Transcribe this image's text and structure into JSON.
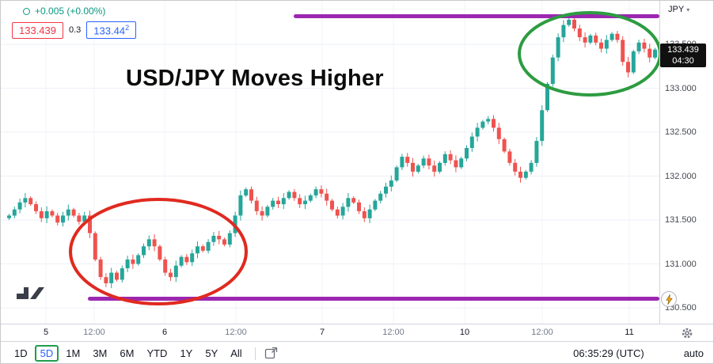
{
  "legend": {
    "change": "+0.005 (+0.00%)",
    "sell": "133.439",
    "spread": "0.3",
    "buy_main": "133.44",
    "buy_sup": "2"
  },
  "annotation": {
    "title": "USD/JPY Moves Higher"
  },
  "price_axis": {
    "symbol_label": "JPY",
    "levels": [
      "133.500",
      "133.000",
      "132.500",
      "132.000",
      "131.500",
      "131.000",
      "130.500"
    ],
    "last_price": "133.439",
    "countdown": "04:30"
  },
  "time_axis": {
    "labels": [
      {
        "text": "5",
        "major": true
      },
      {
        "text": "12:00",
        "major": false
      },
      {
        "text": "6",
        "major": true
      },
      {
        "text": "12:00",
        "major": false
      },
      {
        "text": "7",
        "major": true
      },
      {
        "text": "12:00",
        "major": false
      },
      {
        "text": "10",
        "major": true
      },
      {
        "text": "12:00",
        "major": false
      },
      {
        "text": "11",
        "major": true
      }
    ]
  },
  "toolbar": {
    "ranges": [
      "1D",
      "5D",
      "1M",
      "3M",
      "6M",
      "YTD",
      "1Y",
      "5Y",
      "All"
    ],
    "selected": "5D",
    "clock": "06:35:29 (UTC)",
    "scale_mode": "auto"
  },
  "chart_data": {
    "type": "candlestick",
    "symbol": "USD/JPY",
    "title": "USD/JPY Moves Higher",
    "x_labels": [
      "5",
      "12:00",
      "6",
      "12:00",
      "7",
      "12:00",
      "10",
      "12:00",
      "11"
    ],
    "price_gridlines": [
      133.5,
      133.0,
      132.5,
      132.0,
      131.5,
      131.0,
      130.5
    ],
    "ylim": [
      130.4,
      133.95
    ],
    "open_rule": "each candle opens at previous close",
    "closes": [
      131.55,
      131.62,
      131.7,
      131.75,
      131.68,
      131.6,
      131.52,
      131.6,
      131.55,
      131.47,
      131.55,
      131.62,
      131.55,
      131.48,
      131.55,
      131.35,
      131.05,
      130.85,
      130.78,
      130.9,
      130.82,
      130.95,
      131.05,
      131.0,
      131.1,
      131.2,
      131.28,
      131.2,
      131.05,
      130.9,
      130.85,
      130.98,
      131.08,
      131.02,
      131.12,
      131.2,
      131.15,
      131.25,
      131.32,
      131.28,
      131.22,
      131.35,
      131.55,
      131.78,
      131.85,
      131.72,
      131.6,
      131.55,
      131.65,
      131.72,
      131.68,
      131.75,
      131.82,
      131.75,
      131.68,
      131.72,
      131.78,
      131.85,
      131.8,
      131.72,
      131.62,
      131.55,
      131.65,
      131.75,
      131.7,
      131.6,
      131.52,
      131.62,
      131.72,
      131.8,
      131.88,
      131.95,
      132.1,
      132.22,
      132.15,
      132.05,
      132.12,
      132.2,
      132.12,
      132.05,
      132.15,
      132.25,
      132.18,
      132.1,
      132.2,
      132.32,
      132.45,
      132.55,
      132.62,
      132.65,
      132.55,
      132.42,
      132.28,
      132.15,
      132.05,
      131.98,
      132.05,
      132.15,
      132.4,
      132.75,
      133.05,
      133.35,
      133.58,
      133.72,
      133.78,
      133.68,
      133.58,
      133.52,
      133.6,
      133.52,
      133.45,
      133.55,
      133.62,
      133.55,
      133.3,
      133.18,
      133.42,
      133.52,
      133.45,
      133.35,
      133.44
    ],
    "up_color": "#26a69a",
    "down_color": "#ef5350",
    "overlays": {
      "resistance_line": 133.82,
      "support_line": 130.6,
      "line_color": "#9c27b0",
      "ellipses": [
        {
          "label": "lower-range-highlight",
          "color": "#e02a20"
        },
        {
          "label": "upper-range-highlight",
          "color": "#2d9c41"
        }
      ]
    }
  },
  "colors": {
    "accent_blue": "#2962ff",
    "sell_red": "#f23645",
    "change_green": "#089981",
    "badge_bg": "#101010"
  }
}
